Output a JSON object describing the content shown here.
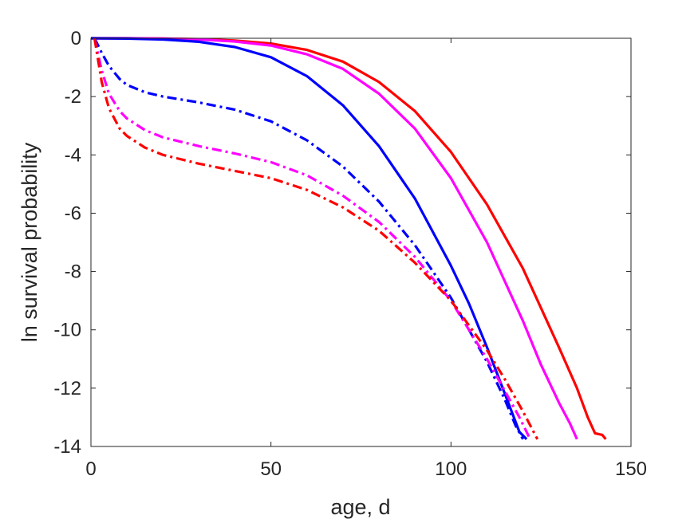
{
  "chart_data": {
    "type": "line",
    "xlabel": "age, d",
    "ylabel": "ln survival probability",
    "xlim": [
      0,
      150
    ],
    "ylim": [
      -14,
      0
    ],
    "xticks": [
      "0",
      "50",
      "100",
      "150"
    ],
    "yticks": [
      "0",
      "-2",
      "-4",
      "-6",
      "-8",
      "-10",
      "-12",
      "-14"
    ],
    "grid": false,
    "legend": "none",
    "series": [
      {
        "color": "#ff0000",
        "style": "solid",
        "x": [
          0,
          10,
          20,
          30,
          40,
          50,
          60,
          70,
          80,
          90,
          100,
          110,
          120,
          130,
          135,
          138,
          140,
          142,
          143
        ],
        "y": [
          0,
          0,
          -0.01,
          -0.03,
          -0.08,
          -0.18,
          -0.4,
          -0.8,
          -1.5,
          -2.5,
          -3.9,
          -5.7,
          -7.9,
          -10.6,
          -12.0,
          -13.0,
          -13.55,
          -13.6,
          -13.75
        ]
      },
      {
        "color": "#ff00ff",
        "style": "solid",
        "x": [
          0,
          10,
          20,
          30,
          40,
          50,
          60,
          70,
          80,
          90,
          100,
          110,
          120,
          125,
          130,
          133,
          135
        ],
        "y": [
          0,
          0,
          -0.01,
          -0.04,
          -0.11,
          -0.25,
          -0.55,
          -1.05,
          -1.9,
          -3.1,
          -4.8,
          -7.0,
          -9.7,
          -11.2,
          -12.5,
          -13.2,
          -13.75
        ]
      },
      {
        "color": "#0000ff",
        "style": "solid",
        "x": [
          0,
          10,
          20,
          30,
          40,
          50,
          60,
          70,
          80,
          90,
          100,
          105,
          110,
          115,
          119,
          121
        ],
        "y": [
          0,
          -0.01,
          -0.04,
          -0.12,
          -0.3,
          -0.65,
          -1.3,
          -2.3,
          -3.7,
          -5.5,
          -7.8,
          -9.1,
          -10.6,
          -12.2,
          -13.5,
          -13.75
        ]
      },
      {
        "color": "#0000ff",
        "style": "dashdot",
        "x": [
          1,
          3,
          5,
          8,
          10,
          15,
          20,
          30,
          40,
          50,
          60,
          70,
          80,
          90,
          100,
          110,
          115,
          118,
          120
        ],
        "y": [
          0,
          -0.5,
          -0.95,
          -1.4,
          -1.6,
          -1.85,
          -2.0,
          -2.2,
          -2.45,
          -2.85,
          -3.5,
          -4.4,
          -5.6,
          -7.1,
          -8.9,
          -11.1,
          -12.4,
          -13.3,
          -13.75
        ]
      },
      {
        "color": "#ff00ff",
        "style": "dashdot",
        "x": [
          1,
          3,
          5,
          8,
          10,
          15,
          20,
          30,
          40,
          50,
          60,
          70,
          80,
          90,
          100,
          110,
          115,
          119,
          122
        ],
        "y": [
          0,
          -1.1,
          -1.9,
          -2.5,
          -2.75,
          -3.15,
          -3.4,
          -3.7,
          -3.95,
          -4.25,
          -4.7,
          -5.4,
          -6.3,
          -7.5,
          -9.0,
          -11.0,
          -12.1,
          -13.0,
          -13.75
        ]
      },
      {
        "color": "#ff0000",
        "style": "dashdot",
        "x": [
          1,
          3,
          5,
          8,
          10,
          15,
          20,
          30,
          40,
          50,
          60,
          70,
          80,
          90,
          100,
          110,
          115,
          120,
          124
        ],
        "y": [
          0,
          -1.5,
          -2.4,
          -3.1,
          -3.35,
          -3.75,
          -4.0,
          -4.3,
          -4.55,
          -4.8,
          -5.2,
          -5.8,
          -6.6,
          -7.7,
          -9.0,
          -10.7,
          -11.7,
          -12.8,
          -13.75
        ]
      }
    ]
  }
}
